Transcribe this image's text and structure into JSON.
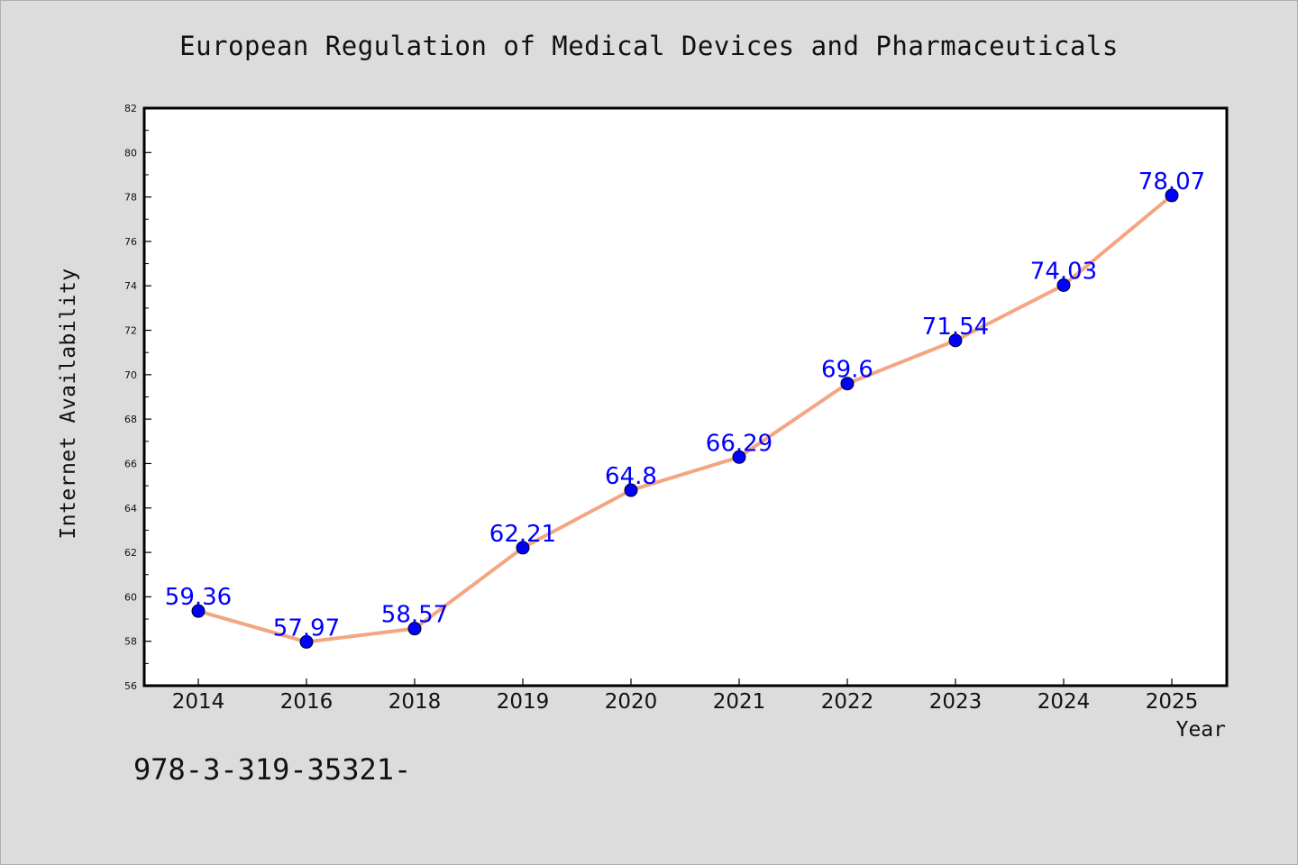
{
  "chart_data": {
    "type": "line",
    "title": "European Regulation of Medical Devices and Pharmaceuticals",
    "xlabel": "Year",
    "ylabel": "Internet Availability",
    "categories": [
      "2014",
      "2016",
      "2018",
      "2019",
      "2020",
      "2021",
      "2022",
      "2023",
      "2024",
      "2025"
    ],
    "series": [
      {
        "values": [
          59.36,
          57.97,
          58.57,
          62.21,
          64.8,
          66.29,
          69.6,
          71.54,
          74.03,
          78.07
        ],
        "labels": [
          "59.36",
          "57.97",
          "58.57",
          "62.21",
          "64.8",
          "66.29",
          "69.6",
          "71.54",
          "74.03",
          "78.07"
        ]
      }
    ],
    "ylim": [
      56,
      82
    ],
    "y_ticks": [
      56,
      58,
      60,
      62,
      64,
      66,
      68,
      70,
      72,
      74,
      76,
      78,
      80,
      82
    ],
    "grid": false,
    "colors": {
      "line": "#f4a582",
      "marker_fill": "#0000ff",
      "data_label": "#0000ff"
    }
  },
  "annotation": {
    "text": "978-3-319-35321-"
  }
}
